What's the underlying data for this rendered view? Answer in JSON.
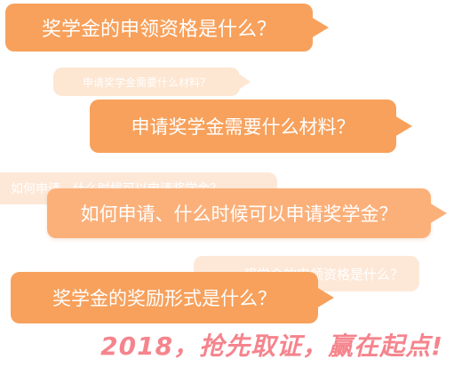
{
  "bubbles": {
    "q_qualification": "奖学金的申领资格是什么？",
    "q_materials_faded": "申请奖学金需要什么材料？",
    "q_materials": "申请奖学金需要什么材料？",
    "q_when_faded": "如何申请、什么时候可以申请奖学金？",
    "q_when": "如何申请、什么时候可以申请奖学金？",
    "q_qualification_faded": "奖学金的申领资格是什么？",
    "q_forms": "奖学金的奖励形式是什么？"
  },
  "slogan": "2018，抢先取证，赢在起点!",
  "colors": {
    "bubble": "#f7a15c",
    "bubble_light": "#fbb07a",
    "bubble_faded": "#fde6d2",
    "slogan": "#f5848d"
  }
}
